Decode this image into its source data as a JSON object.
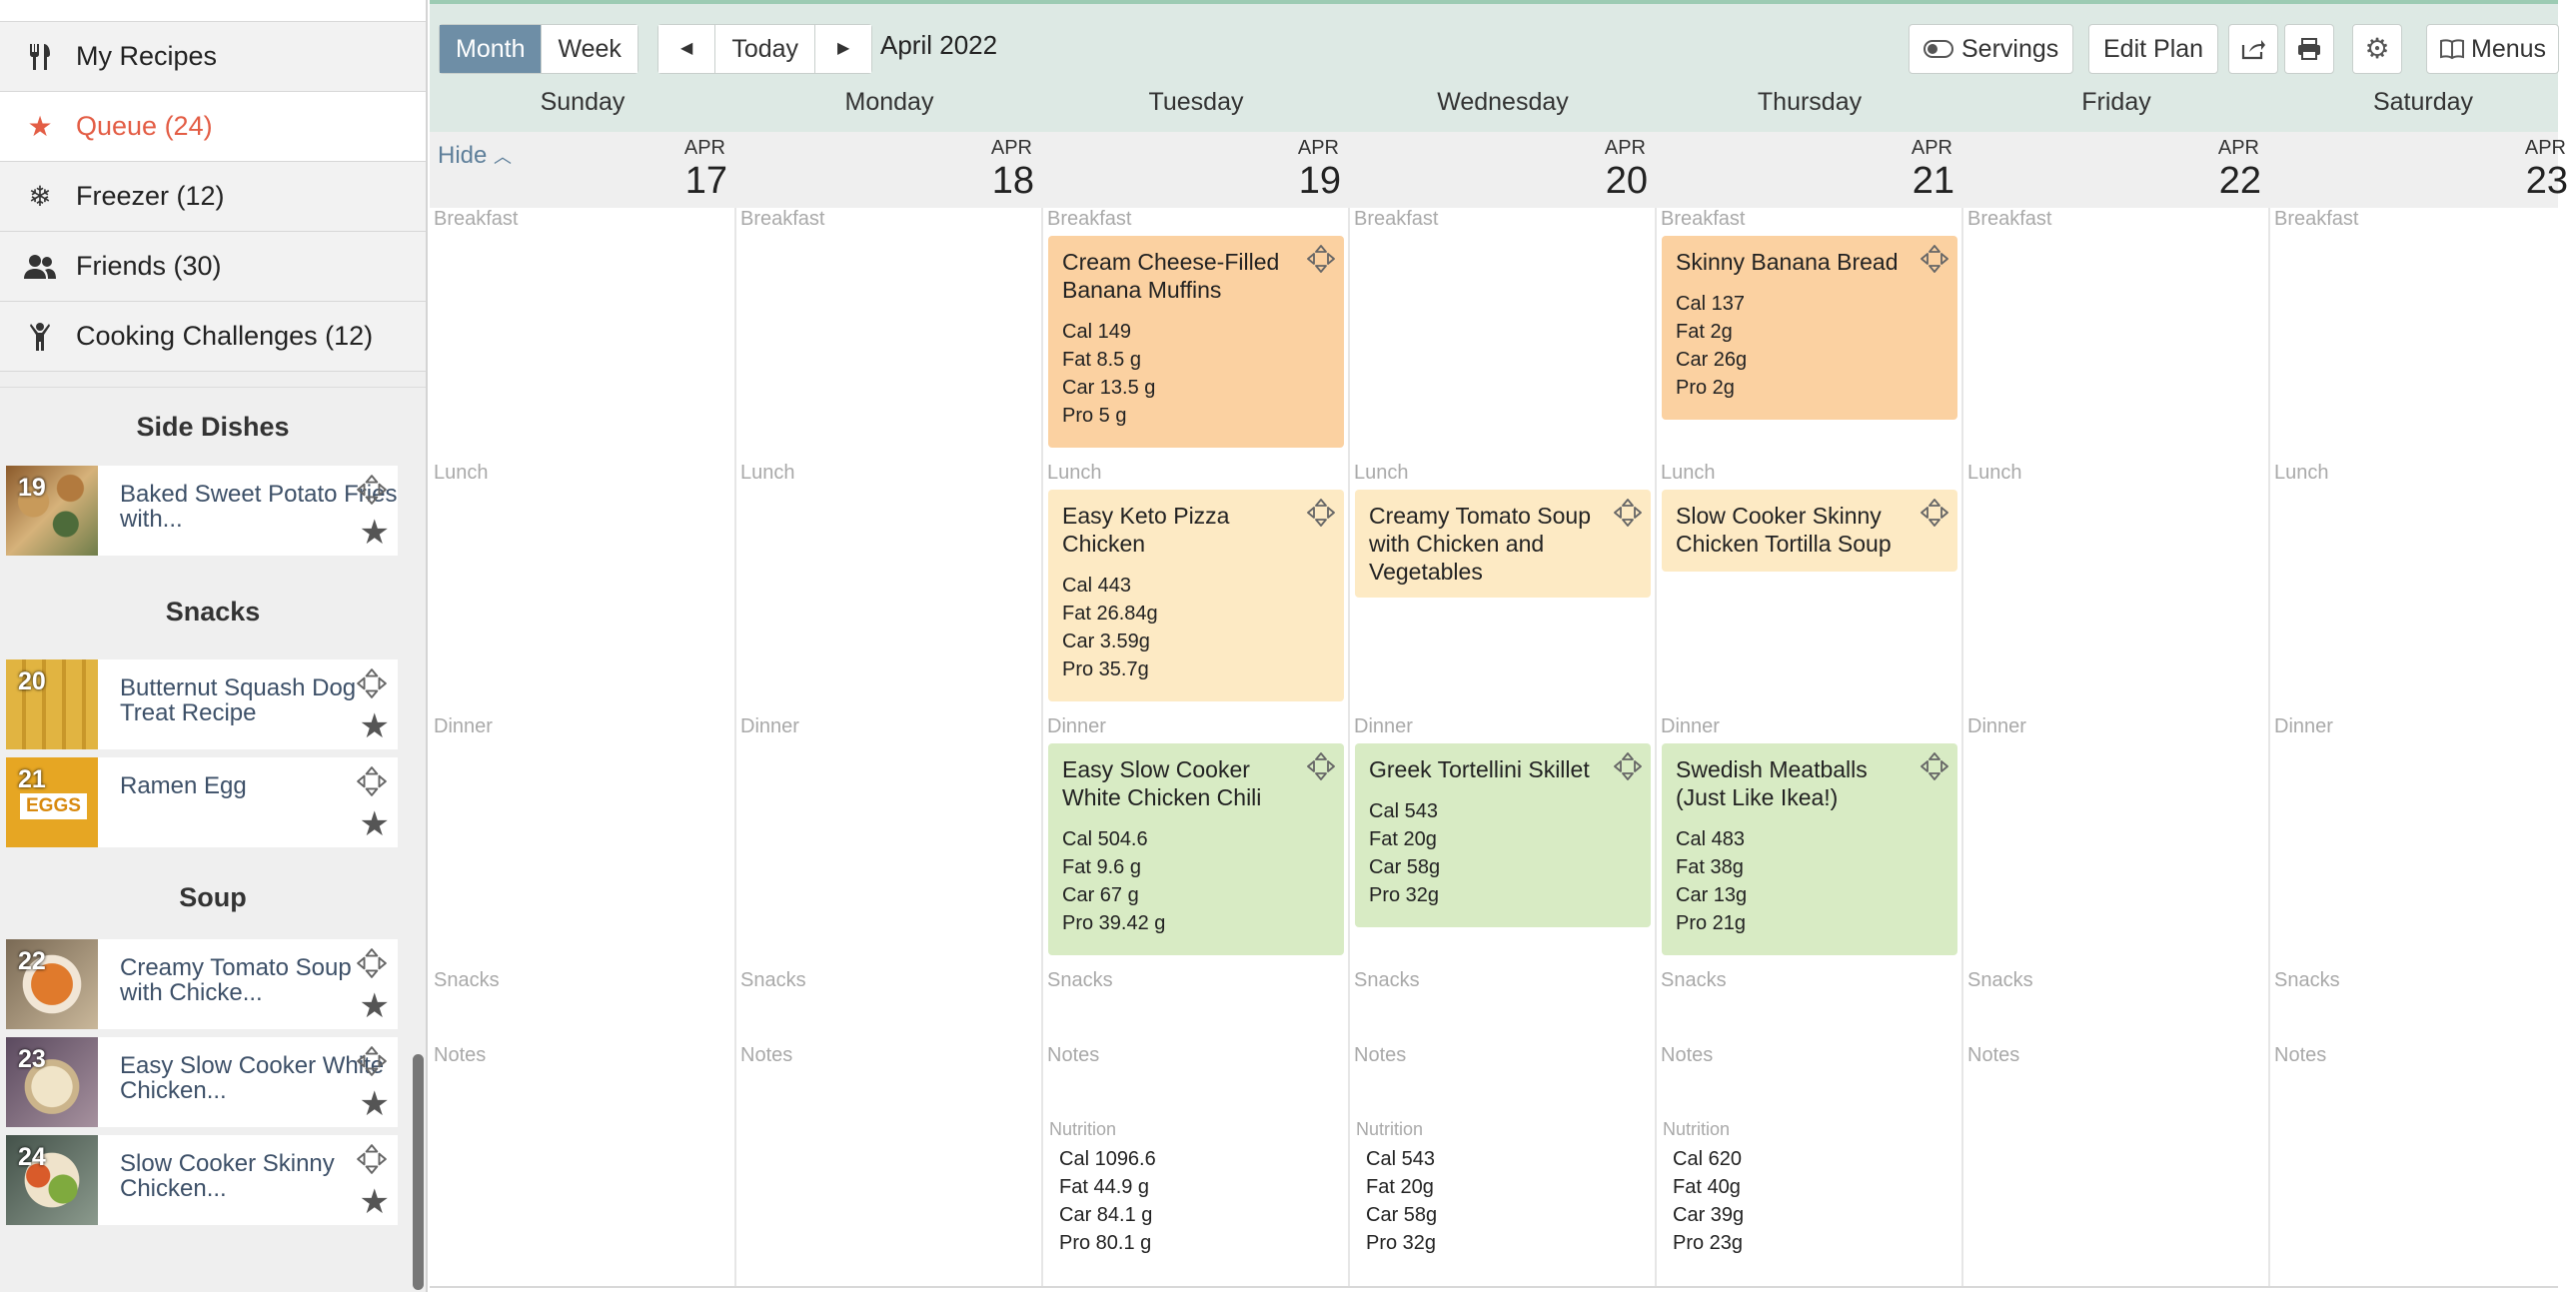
{
  "sidebar": {
    "nav": [
      {
        "label": "My Recipes",
        "icon": "fork-knife-icon",
        "active": false
      },
      {
        "label": "Queue (24)",
        "icon": "star-icon",
        "active": true
      },
      {
        "label": "Freezer (12)",
        "icon": "snowflake-icon",
        "active": false
      },
      {
        "label": "Friends (30)",
        "icon": "people-icon",
        "active": false
      },
      {
        "label": "Cooking Challenges (12)",
        "icon": "trophy-person-icon",
        "active": false
      }
    ],
    "sections": [
      {
        "title": "Side Dishes",
        "recipes": [
          {
            "title": "Baked Sweet Potato Fries with...",
            "day": "19"
          }
        ]
      },
      {
        "title": "Snacks",
        "recipes": [
          {
            "title": "Butternut Squash Dog Treat Recipe",
            "day": "20"
          },
          {
            "title": "Ramen Egg",
            "day": "21",
            "thumb_text": "EGGS"
          }
        ]
      },
      {
        "title": "Soup",
        "recipes": [
          {
            "title": "Creamy Tomato Soup with Chicke...",
            "day": "22"
          },
          {
            "title": "Easy Slow Cooker White Chicken...",
            "day": "23"
          },
          {
            "title": "Slow Cooker Skinny Chicken...",
            "day": "24"
          }
        ]
      }
    ]
  },
  "toolbar": {
    "month": "Month",
    "week": "Week",
    "prev_icon": "◀",
    "today": "Today",
    "next_icon": "▶",
    "date_label": "April 2022",
    "servings": "Servings",
    "edit_plan": "Edit Plan",
    "menus": "Menus"
  },
  "calendar": {
    "hide_label": "Hide",
    "slot_labels": {
      "breakfast": "Breakfast",
      "lunch": "Lunch",
      "dinner": "Dinner",
      "snacks": "Snacks",
      "notes": "Notes",
      "nutrition": "Nutrition"
    },
    "days": [
      {
        "name": "Sunday",
        "month": "APR",
        "date": "17"
      },
      {
        "name": "Monday",
        "month": "APR",
        "date": "18"
      },
      {
        "name": "Tuesday",
        "month": "APR",
        "date": "19"
      },
      {
        "name": "Wednesday",
        "month": "APR",
        "date": "20"
      },
      {
        "name": "Thursday",
        "month": "APR",
        "date": "21"
      },
      {
        "name": "Friday",
        "month": "APR",
        "date": "22"
      },
      {
        "name": "Saturday",
        "month": "APR",
        "date": "23"
      }
    ],
    "meals": {
      "tue_breakfast": {
        "title": "Cream Cheese-Filled Banana Muffins",
        "macros": [
          "Cal 149",
          "Fat 8.5 g",
          "Car 13.5 g",
          "Pro 5 g"
        ]
      },
      "thu_breakfast": {
        "title": "Skinny Banana Bread",
        "macros": [
          "Cal 137",
          "Fat 2g",
          "Car 26g",
          "Pro 2g"
        ]
      },
      "tue_lunch": {
        "title": "Easy Keto Pizza Chicken",
        "macros": [
          "Cal 443",
          "Fat 26.84g",
          "Car 3.59g",
          "Pro 35.7g"
        ]
      },
      "wed_lunch": {
        "title": "Creamy Tomato Soup with Chicken and Vegetables",
        "macros": []
      },
      "thu_lunch": {
        "title": "Slow Cooker Skinny Chicken Tortilla Soup",
        "macros": []
      },
      "tue_dinner": {
        "title": "Easy Slow Cooker White Chicken Chili",
        "macros": [
          "Cal 504.6",
          "Fat 9.6 g",
          "Car 67 g",
          "Pro 39.42 g"
        ]
      },
      "wed_dinner": {
        "title": "Greek Tortellini Skillet",
        "macros": [
          "Cal 543",
          "Fat 20g",
          "Car 58g",
          "Pro 32g"
        ]
      },
      "thu_dinner": {
        "title": "Swedish Meatballs (Just Like Ikea!)",
        "macros": [
          "Cal 483",
          "Fat 38g",
          "Car 13g",
          "Pro 21g"
        ]
      }
    },
    "nutrition": {
      "tue": [
        "Cal 1096.6",
        "Fat 44.9 g",
        "Car 84.1 g",
        "Pro 80.1 g"
      ],
      "wed": [
        "Cal 543",
        "Fat 20g",
        "Car 58g",
        "Pro 32g"
      ],
      "thu": [
        "Cal 620",
        "Fat 40g",
        "Car 39g",
        "Pro 23g"
      ]
    }
  },
  "colors": {
    "accent": "#e35d45",
    "toolbar_bg": "#dde9e4",
    "breakfast": "#fbd1a1",
    "lunch": "#fdeac4",
    "dinner": "#d8ebc4",
    "link": "#5e7f9a"
  }
}
